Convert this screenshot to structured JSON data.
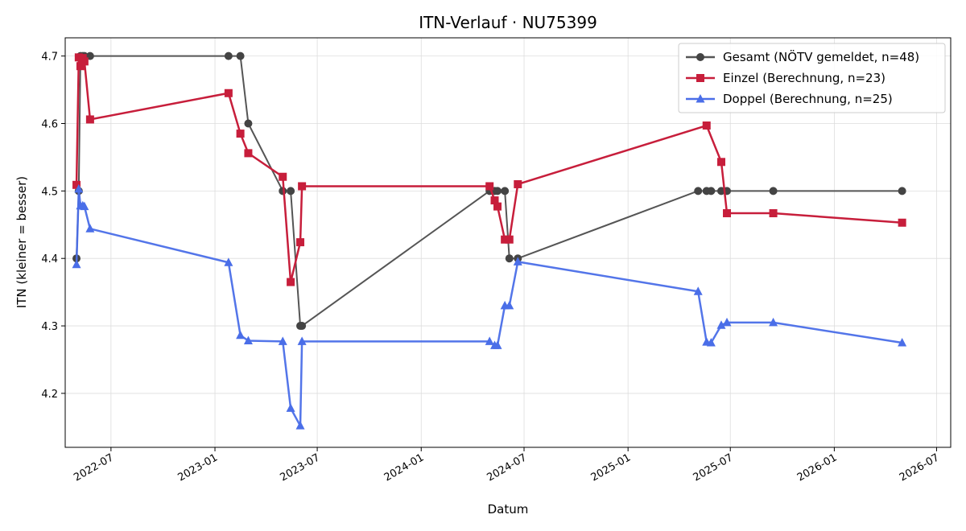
{
  "chart_data": {
    "type": "line",
    "title": "ITN-Verlauf · NU75399",
    "xlabel": "Datum",
    "ylabel": "ITN  (kleiner = besser)",
    "x_ticks": [
      "2022-07",
      "2023-01",
      "2023-07",
      "2024-01",
      "2024-07",
      "2025-01",
      "2025-07",
      "2026-01",
      "2026-07"
    ],
    "y_ticks": [
      "4.2",
      "4.3",
      "4.4",
      "4.5",
      "4.6",
      "4.7"
    ],
    "xlim": [
      "2022-04-11",
      "2026-07-26"
    ],
    "ylim": [
      4.12,
      4.727
    ],
    "grid": true,
    "legend_position": "top-right",
    "series": [
      {
        "name": "Gesamt (NÖTV gemeldet, n=48)",
        "color": "#555555",
        "marker": "circle",
        "points": [
          [
            "2022-05-01",
            4.4
          ],
          [
            "2022-05-05",
            4.5
          ],
          [
            "2022-05-08",
            4.7
          ],
          [
            "2022-05-12",
            4.7
          ],
          [
            "2022-05-15",
            4.7
          ],
          [
            "2022-05-25",
            4.7
          ],
          [
            "2023-01-25",
            4.7
          ],
          [
            "2023-02-15",
            4.7
          ],
          [
            "2023-03-01",
            4.6
          ],
          [
            "2023-05-01",
            4.5
          ],
          [
            "2023-05-15",
            4.5
          ],
          [
            "2023-06-01",
            4.3
          ],
          [
            "2023-06-04",
            4.3
          ],
          [
            "2024-05-01",
            4.5
          ],
          [
            "2024-05-10",
            4.5
          ],
          [
            "2024-05-15",
            4.5
          ],
          [
            "2024-05-28",
            4.5
          ],
          [
            "2024-06-05",
            4.4
          ],
          [
            "2024-06-20",
            4.4
          ],
          [
            "2025-05-05",
            4.5
          ],
          [
            "2025-05-20",
            4.5
          ],
          [
            "2025-05-28",
            4.5
          ],
          [
            "2025-06-15",
            4.5
          ],
          [
            "2025-06-25",
            4.5
          ],
          [
            "2025-09-15",
            4.5
          ],
          [
            "2026-05-01",
            4.5
          ]
        ]
      },
      {
        "name": "Einzel (Berechnung, n=23)",
        "color": "#c71e3b",
        "marker": "square",
        "points": [
          [
            "2022-05-01",
            4.509
          ],
          [
            "2022-05-05",
            4.698
          ],
          [
            "2022-05-08",
            4.685
          ],
          [
            "2022-05-12",
            4.697
          ],
          [
            "2022-05-15",
            4.692
          ],
          [
            "2022-05-25",
            4.606
          ],
          [
            "2023-01-25",
            4.645
          ],
          [
            "2023-02-15",
            4.585
          ],
          [
            "2023-03-01",
            4.556
          ],
          [
            "2023-05-01",
            4.521
          ],
          [
            "2023-05-15",
            4.365
          ],
          [
            "2023-06-01",
            4.424
          ],
          [
            "2023-06-04",
            4.507
          ],
          [
            "2024-05-01",
            4.507
          ],
          [
            "2024-05-10",
            4.486
          ],
          [
            "2024-05-15",
            4.477
          ],
          [
            "2024-05-28",
            4.428
          ],
          [
            "2024-06-05",
            4.428
          ],
          [
            "2024-06-20",
            4.51
          ],
          [
            "2025-05-20",
            4.597
          ],
          [
            "2025-06-15",
            4.543
          ],
          [
            "2025-06-25",
            4.467
          ],
          [
            "2025-09-15",
            4.467
          ],
          [
            "2026-05-01",
            4.453
          ]
        ]
      },
      {
        "name": "Doppel (Berechnung, n=25)",
        "color": "#4a6ee8",
        "marker": "triangle",
        "points": [
          [
            "2022-05-01",
            4.391
          ],
          [
            "2022-05-05",
            4.503
          ],
          [
            "2022-05-08",
            4.478
          ],
          [
            "2022-05-12",
            4.478
          ],
          [
            "2022-05-15",
            4.477
          ],
          [
            "2022-05-25",
            4.444
          ],
          [
            "2023-01-25",
            4.394
          ],
          [
            "2023-02-15",
            4.286
          ],
          [
            "2023-03-01",
            4.278
          ],
          [
            "2023-05-01",
            4.277
          ],
          [
            "2023-05-15",
            4.178
          ],
          [
            "2023-06-01",
            4.152
          ],
          [
            "2023-06-04",
            4.277
          ],
          [
            "2024-05-01",
            4.277
          ],
          [
            "2024-05-10",
            4.271
          ],
          [
            "2024-05-15",
            4.271
          ],
          [
            "2024-05-28",
            4.33
          ],
          [
            "2024-06-05",
            4.33
          ],
          [
            "2024-06-20",
            4.395
          ],
          [
            "2025-05-05",
            4.351
          ],
          [
            "2025-05-20",
            4.276
          ],
          [
            "2025-05-28",
            4.275
          ],
          [
            "2025-06-15",
            4.301
          ],
          [
            "2025-06-25",
            4.305
          ],
          [
            "2025-09-15",
            4.305
          ],
          [
            "2026-05-01",
            4.275
          ]
        ]
      }
    ]
  }
}
